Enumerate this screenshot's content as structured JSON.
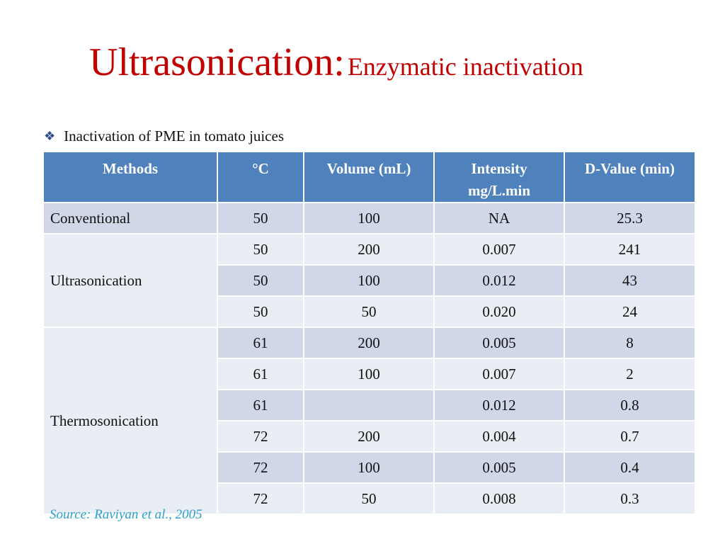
{
  "slide": {
    "title_main": "Ultrasonication:",
    "title_sub": "Enzymatic inactivation",
    "bullet_text": "Inactivation of PME in tomato juices",
    "source": "Source: Raviyan et al., 2005"
  },
  "table": {
    "headers": {
      "methods": "Methods",
      "temp": "°C",
      "volume": "Volume (mL)",
      "intensity_1": "Intensity",
      "intensity_2": "mg/L.min",
      "dvalue": "D-Value (min)"
    },
    "methods": {
      "conventional": "Conventional",
      "ultrasonication": "Ultrasonication",
      "thermosonication": "Thermosonication"
    },
    "rows": [
      {
        "temp": "50",
        "volume": "100",
        "intensity": "NA",
        "dvalue": "25.3"
      },
      {
        "temp": "50",
        "volume": "200",
        "intensity": "0.007",
        "dvalue": "241"
      },
      {
        "temp": "50",
        "volume": "100",
        "intensity": "0.012",
        "dvalue": "43"
      },
      {
        "temp": "50",
        "volume": "50",
        "intensity": "0.020",
        "dvalue": "24"
      },
      {
        "temp": "61",
        "volume": "200",
        "intensity": "0.005",
        "dvalue": "8"
      },
      {
        "temp": "61",
        "volume": "100",
        "intensity": "0.007",
        "dvalue": "2"
      },
      {
        "temp": "61",
        "volume": "",
        "intensity": "0.012",
        "dvalue": "0.8"
      },
      {
        "temp": "72",
        "volume": "200",
        "intensity": "0.004",
        "dvalue": "0.7"
      },
      {
        "temp": "72",
        "volume": "100",
        "intensity": "0.005",
        "dvalue": "0.4"
      },
      {
        "temp": "72",
        "volume": "50",
        "intensity": "0.008",
        "dvalue": "0.3"
      }
    ]
  },
  "colors": {
    "title": "#c00000",
    "header_bg": "#4f81bd",
    "band_bg": "#d0d8e8",
    "light_bg": "#e9edf4",
    "source": "#2aa0d0"
  }
}
